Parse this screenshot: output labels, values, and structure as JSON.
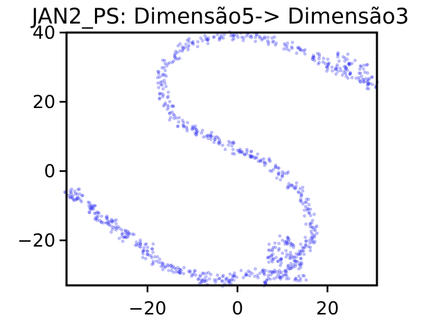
{
  "chart_data": {
    "type": "scatter",
    "title": "JAN2_PS: Dimensão5-> Dimensão3",
    "xlabel": "",
    "ylabel": "",
    "xlim": [
      -38,
      31
    ],
    "ylim": [
      -33,
      40
    ],
    "x_ticks": [
      -20,
      0,
      20
    ],
    "x_tick_labels": [
      "−20",
      "0",
      "20"
    ],
    "y_ticks": [
      -20,
      0,
      20,
      40
    ],
    "y_tick_labels": [
      "−20",
      "0",
      "20",
      "40"
    ],
    "grid": false,
    "legend": "none",
    "color": "#2020e8",
    "series": [
      {
        "points": [
          [
            -37.5,
            -7
          ],
          [
            -35.5,
            -8
          ],
          [
            -33,
            -10
          ],
          [
            -31,
            -13
          ],
          [
            -29,
            -15
          ],
          [
            -27,
            -17
          ],
          [
            -25,
            -19
          ],
          [
            -22,
            -21
          ],
          [
            -20,
            -24
          ],
          [
            -18,
            -26
          ],
          [
            -16,
            -27.5
          ],
          [
            -13,
            -29
          ],
          [
            -10,
            -30
          ],
          [
            -7,
            -30.5
          ],
          [
            -4,
            -31
          ],
          [
            -1,
            -30.5
          ],
          [
            2,
            -30
          ],
          [
            5,
            -29.5
          ],
          [
            7,
            -29
          ],
          [
            9,
            -30
          ],
          [
            10.5,
            -30
          ],
          [
            12,
            -28
          ],
          [
            13,
            -26
          ],
          [
            14,
            -24
          ],
          [
            15,
            -22
          ],
          [
            16,
            -20
          ],
          [
            16.5,
            -18
          ],
          [
            16.5,
            -15
          ],
          [
            16,
            -12
          ],
          [
            15,
            -9
          ],
          [
            13.5,
            -6
          ],
          [
            12,
            -4
          ],
          [
            10,
            -1.5
          ],
          [
            8,
            0.5
          ],
          [
            6,
            2.5
          ],
          [
            4,
            4
          ],
          [
            2,
            5
          ],
          [
            0,
            6
          ],
          [
            -2,
            7.5
          ],
          [
            -4,
            9
          ],
          [
            -6,
            10
          ],
          [
            -8,
            11
          ],
          [
            -10,
            12
          ],
          [
            -12,
            14
          ],
          [
            -14,
            16
          ],
          [
            -15.5,
            19
          ],
          [
            -16.5,
            22
          ],
          [
            -17,
            25
          ],
          [
            -16.5,
            28
          ],
          [
            -15.5,
            31
          ],
          [
            -14,
            33.5
          ],
          [
            -12,
            35.5
          ],
          [
            -10,
            37
          ],
          [
            -7,
            38
          ],
          [
            -4,
            38.5
          ],
          [
            -1,
            39
          ],
          [
            2,
            39
          ],
          [
            5,
            38.5
          ],
          [
            8,
            37.5
          ],
          [
            11,
            36
          ],
          [
            14,
            35
          ],
          [
            17,
            33
          ],
          [
            19,
            31.5
          ],
          [
            21,
            30
          ],
          [
            23,
            29
          ],
          [
            25,
            28
          ],
          [
            27,
            27
          ],
          [
            29,
            26
          ],
          [
            30,
            25
          ],
          [
            23.5,
            33
          ],
          [
            25,
            31
          ],
          [
            28,
            29.5
          ],
          [
            10,
            -20
          ],
          [
            12,
            -21
          ],
          [
            8,
            -22
          ],
          [
            11,
            -24
          ],
          [
            7,
            -25
          ],
          [
            9,
            -26
          ],
          [
            13,
            -27
          ],
          [
            14,
            -31
          ],
          [
            6,
            -32
          ],
          [
            -2,
            -32
          ],
          [
            -8,
            -31.5
          ],
          [
            -14,
            -28
          ],
          [
            -20,
            -22
          ],
          [
            -24,
            -18
          ],
          [
            -28,
            -14
          ],
          [
            -32,
            -11
          ],
          [
            -36,
            -6.5
          ]
        ]
      }
    ]
  }
}
